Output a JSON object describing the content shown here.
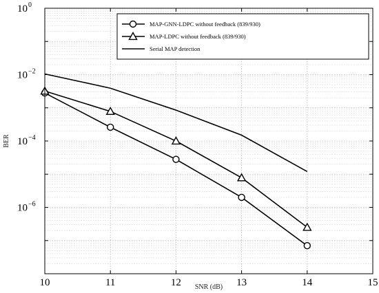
{
  "chart_data": {
    "type": "line",
    "xlabel": "SNR (dB)",
    "ylabel": "BER",
    "x_scale": "linear",
    "y_scale": "log",
    "xlim": [
      10,
      15
    ],
    "ylim": [
      1e-08,
      1
    ],
    "x_ticks": [
      "10",
      "11",
      "12",
      "13",
      "14",
      "15"
    ],
    "y_ticks": [
      {
        "base": "10",
        "exp": "0",
        "value": 1
      },
      {
        "base": "10",
        "exp": "−2",
        "value": 0.01
      },
      {
        "base": "10",
        "exp": "−4",
        "value": 0.0001
      },
      {
        "base": "10",
        "exp": "−6",
        "value": 1e-06
      }
    ],
    "grid": "major and minor (dotted)",
    "legend_position": "top-right",
    "series": [
      {
        "name": "MAP-GNN-LDPC without feedback (839/930)",
        "marker": "circle",
        "x": [
          10,
          11,
          12,
          13,
          14
        ],
        "y": [
          0.0028,
          0.00026,
          2.8e-05,
          2e-06,
          7e-08
        ]
      },
      {
        "name": "MAP-LDPC  without feedback (839/930)",
        "marker": "triangle",
        "x": [
          10,
          11,
          12,
          13,
          14
        ],
        "y": [
          0.0032,
          0.00078,
          0.0001,
          7.8e-06,
          2.5e-07
        ]
      },
      {
        "name": "Serial MAP detection",
        "marker": "none",
        "x": [
          10,
          11,
          12,
          13,
          14
        ],
        "y": [
          0.0105,
          0.0039,
          0.00085,
          0.00015,
          1.2e-05
        ]
      }
    ]
  }
}
